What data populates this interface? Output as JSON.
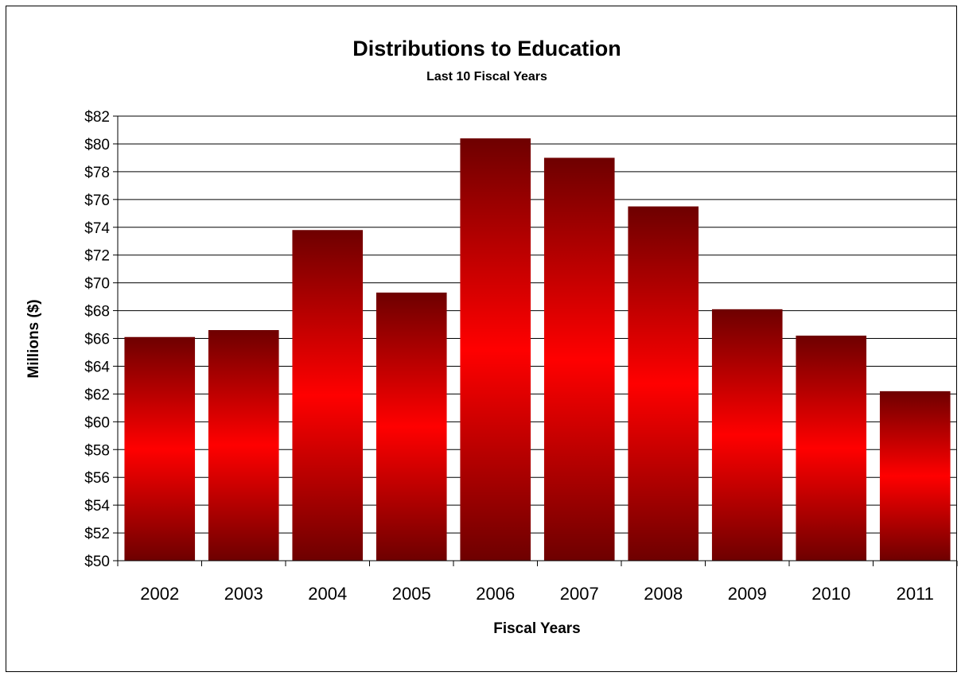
{
  "chart_data": {
    "type": "bar",
    "title": "Distributions to Education",
    "subtitle": "Last 10 Fiscal Years",
    "xlabel": "Fiscal Years",
    "ylabel": "Millions ($)",
    "categories": [
      "2002",
      "2003",
      "2004",
      "2005",
      "2006",
      "2007",
      "2008",
      "2009",
      "2010",
      "2011"
    ],
    "values": [
      66.1,
      66.6,
      73.8,
      69.3,
      80.4,
      79.0,
      75.5,
      68.1,
      66.2,
      62.2
    ],
    "ylim": [
      50,
      82
    ],
    "yticks": [
      50,
      52,
      54,
      56,
      58,
      60,
      62,
      64,
      66,
      68,
      70,
      72,
      74,
      76,
      78,
      80,
      82
    ],
    "ytick_labels": [
      "$50",
      "$52",
      "$54",
      "$56",
      "$58",
      "$60",
      "$62",
      "$64",
      "$66",
      "$68",
      "$70",
      "$72",
      "$74",
      "$76",
      "$78",
      "$80",
      "$82"
    ],
    "grid": true,
    "legend": "none",
    "bar_colors": {
      "edge": "#6e0000",
      "mid": "#ff0000"
    }
  }
}
